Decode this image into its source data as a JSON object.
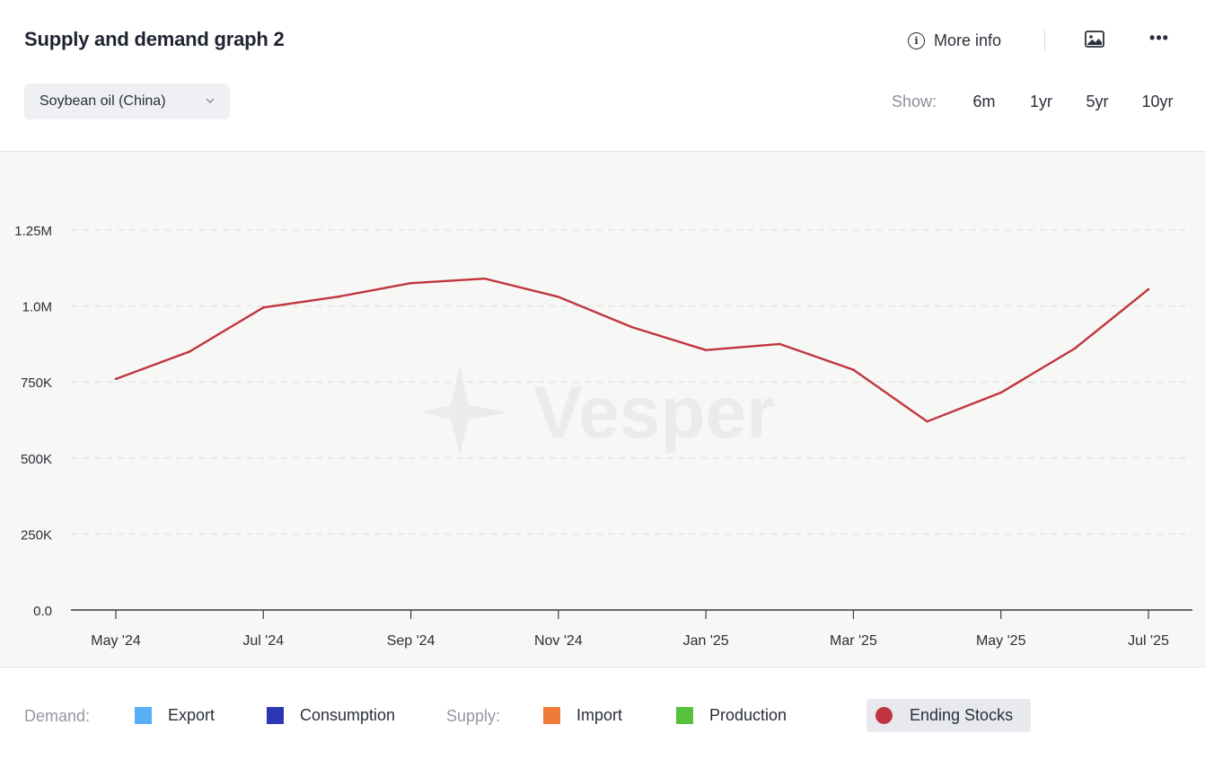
{
  "header": {
    "title": "Supply and demand graph 2",
    "more_info_label": "More info",
    "info_icon_glyph": "i",
    "more_glyph": "•••",
    "commodity_select": "Soybean oil (China)",
    "show_label": "Show:",
    "ranges": [
      {
        "label": "6m",
        "active": false
      },
      {
        "label": "1yr",
        "active": true
      },
      {
        "label": "5yr",
        "active": false
      },
      {
        "label": "10yr",
        "active": false
      }
    ]
  },
  "watermark": "Vesper",
  "legend": {
    "demand_label": "Demand:",
    "supply_label": "Supply:",
    "items": [
      {
        "name": "Export",
        "color": "#5aaef5",
        "active": false
      },
      {
        "name": "Consumption",
        "color": "#2b37b5",
        "active": false
      },
      {
        "name": "Import",
        "color": "#f07a38",
        "active": false
      },
      {
        "name": "Production",
        "color": "#56c13c",
        "active": false
      },
      {
        "name": "Ending Stocks",
        "color": "#c0343f",
        "active": true
      }
    ]
  },
  "chart_data": {
    "type": "line",
    "x_tick_labels": [
      "May '24",
      "Jul '24",
      "Sep '24",
      "Nov '24",
      "Jan '25",
      "Mar '25",
      "May '25",
      "Jul '25"
    ],
    "y_tick_labels": [
      "0.0",
      "250K",
      "500K",
      "750K",
      "1.0M",
      "1.25M"
    ],
    "y_ticks": [
      0,
      250000,
      500000,
      750000,
      1000000,
      1250000
    ],
    "ylim": [
      0,
      1250000
    ],
    "grid": true,
    "series": [
      {
        "name": "Ending Stocks",
        "color": "#c0343f",
        "x": [
          "2024-05",
          "2024-06",
          "2024-07",
          "2024-08",
          "2024-09",
          "2024-10",
          "2024-11",
          "2024-12",
          "2025-01",
          "2025-02",
          "2025-03",
          "2025-04",
          "2025-05",
          "2025-06",
          "2025-07"
        ],
        "values": [
          760000,
          850000,
          995000,
          1030000,
          1075000,
          1090000,
          1030000,
          930000,
          855000,
          875000,
          790000,
          620000,
          715000,
          860000,
          1055000
        ]
      }
    ]
  }
}
